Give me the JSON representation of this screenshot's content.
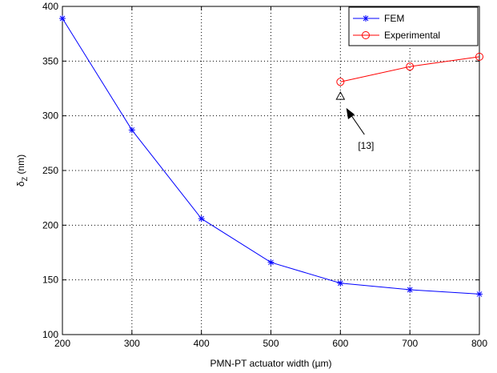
{
  "chart_data": {
    "type": "line",
    "title": "",
    "xlabel": "PMN-PT actuator width (µm)",
    "ylabel_main": "δ",
    "ylabel_sub": "Z",
    "ylabel_unit": " (nm)",
    "xlim": [
      200,
      800
    ],
    "ylim": [
      100,
      400
    ],
    "xticks": [
      200,
      300,
      400,
      500,
      600,
      700,
      800
    ],
    "yticks": [
      100,
      150,
      200,
      250,
      300,
      350,
      400
    ],
    "grid": true,
    "legend_position": "top-right",
    "series": [
      {
        "name": "FEM",
        "color": "#0000ff",
        "marker": "asterisk",
        "x": [
          200,
          300,
          400,
          500,
          600,
          700,
          800
        ],
        "y": [
          389,
          287,
          206,
          166,
          147,
          141,
          137
        ]
      },
      {
        "name": "Experimental",
        "color": "#ff0000",
        "marker": "circle",
        "x": [
          600,
          700,
          800
        ],
        "y": [
          331,
          345,
          354
        ]
      }
    ],
    "annotations": [
      {
        "label": "[13]",
        "marker": "triangle",
        "x": 600,
        "y": 318
      }
    ]
  }
}
